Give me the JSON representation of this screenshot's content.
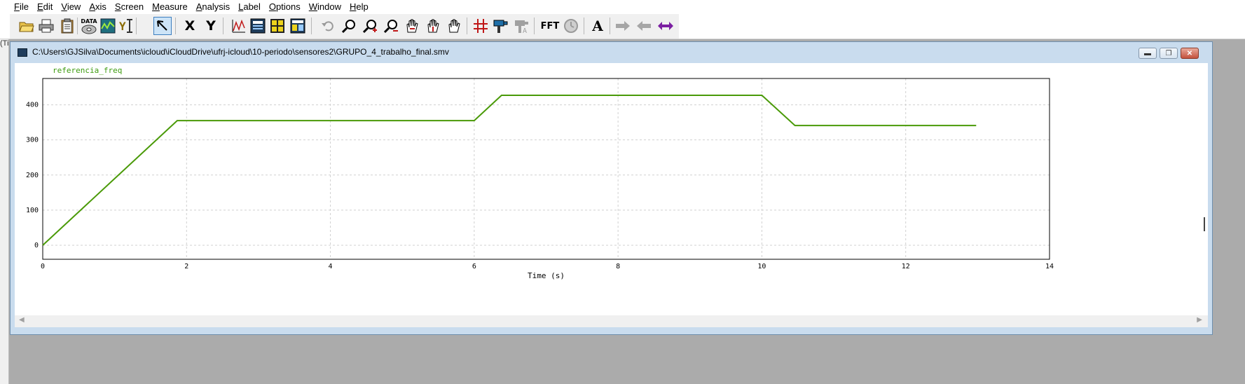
{
  "menu": {
    "items": [
      {
        "key": "F",
        "rest": "ile"
      },
      {
        "key": "E",
        "rest": "dit"
      },
      {
        "key": "V",
        "rest": "iew"
      },
      {
        "key": "A",
        "rest": "xis"
      },
      {
        "key": "S",
        "rest": "creen"
      },
      {
        "key": "M",
        "rest": "easure"
      },
      {
        "key": "A",
        "rest": "nalysis"
      },
      {
        "key": "L",
        "rest": "abel"
      },
      {
        "key": "O",
        "rest": "ptions"
      },
      {
        "key": "W",
        "rest": "indow"
      },
      {
        "key": "H",
        "rest": "elp"
      }
    ]
  },
  "left_stub": "(Ti",
  "toolbar": {
    "data_label": "DATA",
    "x_label": "X",
    "y_label": "Y",
    "fft_label": "FFT",
    "text_label": "A"
  },
  "window": {
    "title": "C:\\Users\\GJSilva\\Documents\\icloud\\iCloudDrive\\ufrj-icloud\\10-periodo\\sensores2\\GRUPO_4_trabalho_final.smv"
  },
  "colors": {
    "series": "#4a9a08",
    "legend": "#3e9c10",
    "grid": "#d0d0d0"
  },
  "chart_data": {
    "type": "line",
    "xlabel": "Time (s)",
    "ylabel": "",
    "xlim": [
      0,
      14
    ],
    "ylim": [
      -40,
      475
    ],
    "xticks": [
      0,
      2,
      4,
      6,
      8,
      10,
      12,
      14
    ],
    "yticks": [
      0,
      100,
      200,
      300,
      400
    ],
    "grid": true,
    "legend_position": "top-left",
    "series": [
      {
        "name": "referencia_freq",
        "x": [
          0,
          1.87,
          6.0,
          6.38,
          10.0,
          10.46,
          12.98
        ],
        "y": [
          0,
          355,
          355,
          427,
          427,
          341,
          341
        ]
      }
    ]
  }
}
